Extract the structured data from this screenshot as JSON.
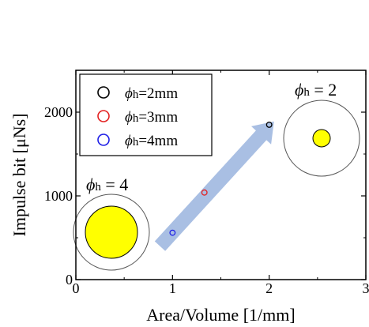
{
  "chart_data": {
    "type": "scatter",
    "xlabel": "Area/Volume [1/mm]",
    "ylabel": "Impulse bit [μNs]",
    "xlim": [
      0,
      3
    ],
    "ylim": [
      0,
      2500
    ],
    "x_ticks": [
      0,
      1,
      2,
      3
    ],
    "y_ticks": [
      0,
      1000,
      2000
    ],
    "x_tick_labels": [
      "0",
      "1",
      "2",
      "3"
    ],
    "y_tick_labels": [
      "0",
      "1000",
      "2000"
    ],
    "grid": false,
    "legend_position": "top-left",
    "series": [
      {
        "name": "ϕh=2mm",
        "symbol": "ϕ",
        "sub": "h",
        "rest": "=2mm",
        "color": "#000000",
        "x": [
          2.0
        ],
        "y": [
          1850
        ]
      },
      {
        "name": "ϕh=3mm",
        "symbol": "ϕ",
        "sub": "h",
        "rest": "=3mm",
        "color": "#e32222",
        "x": [
          1.33
        ],
        "y": [
          1040
        ]
      },
      {
        "name": "ϕh=4mm",
        "symbol": "ϕ",
        "sub": "h",
        "rest": "=4mm",
        "color": "#1f1fe6",
        "x": [
          1.0
        ],
        "y": [
          560
        ]
      }
    ],
    "annotations": [
      {
        "id": "phi4",
        "symbol": "ϕ",
        "sub": "h",
        "rest": " = 4"
      },
      {
        "id": "phi2",
        "symbol": "ϕ",
        "sub": "h",
        "rest": " = 2"
      }
    ],
    "arrow": {
      "from": [
        0.87,
        400
      ],
      "to": [
        2.05,
        1890
      ],
      "color": "#a9bfe3"
    },
    "inset_colors": {
      "ring": "#555555",
      "fill": "#ffff00"
    }
  }
}
